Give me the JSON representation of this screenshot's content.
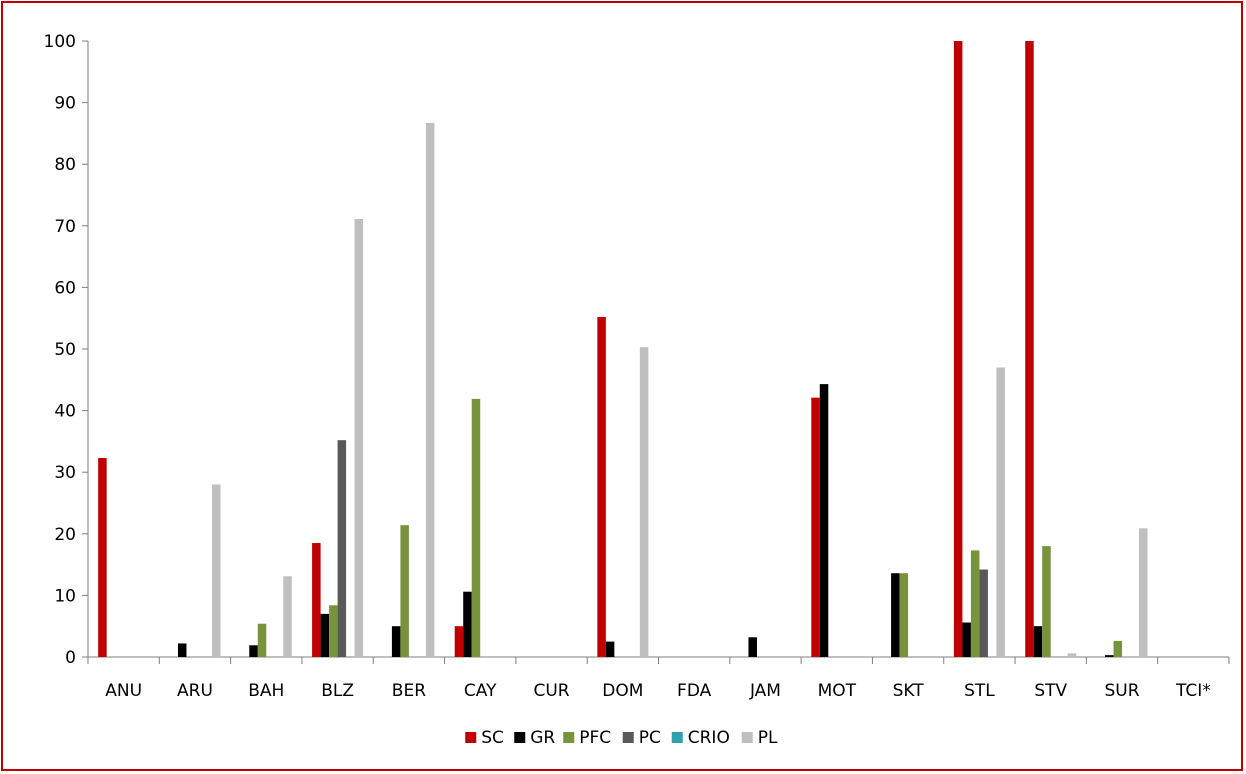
{
  "chart_data": {
    "type": "bar",
    "categories": [
      "ANU",
      "ARU",
      "BAH",
      "BLZ",
      "BER",
      "CAY",
      "CUR",
      "DOM",
      "FDA",
      "JAM",
      "MOT",
      "SKT",
      "STL",
      "STV",
      "SUR",
      "TCI*"
    ],
    "ylim": [
      0,
      100
    ],
    "yticks": [
      0,
      10,
      20,
      30,
      40,
      50,
      60,
      70,
      80,
      90,
      100
    ],
    "grid": false,
    "legend_position": "bottom",
    "series": [
      {
        "name": "SC",
        "color": "#c00000",
        "values": [
          32.3,
          0,
          0,
          18.5,
          0,
          5,
          0,
          55.2,
          0,
          0,
          42.1,
          0,
          100,
          100,
          0,
          0
        ]
      },
      {
        "name": "GR",
        "color": "#000000",
        "values": [
          0,
          2.2,
          1.9,
          7,
          5,
          10.6,
          0,
          2.5,
          0,
          3.2,
          44.3,
          13.6,
          5.6,
          5,
          0.3,
          0
        ]
      },
      {
        "name": "PFC",
        "color": "#77933c",
        "values": [
          0,
          0,
          5.4,
          8.4,
          21.4,
          41.9,
          0,
          0,
          0,
          0,
          0,
          13.6,
          17.3,
          18,
          2.6,
          0
        ]
      },
      {
        "name": "PC",
        "color": "#595959",
        "values": [
          0,
          0,
          0,
          35.2,
          0,
          0,
          0,
          0,
          0,
          0,
          0,
          0,
          14.2,
          0,
          0,
          0
        ]
      },
      {
        "name": "CRIO",
        "color": "#31a0b0",
        "values": [
          0,
          0,
          0,
          0,
          0,
          0,
          0,
          0,
          0,
          0,
          0,
          0,
          0,
          0,
          0,
          0
        ]
      },
      {
        "name": "PL",
        "color": "#bfbfbf",
        "values": [
          0,
          28,
          13.1,
          71.1,
          86.7,
          0,
          0,
          50.3,
          0,
          0,
          0,
          0,
          47,
          0.6,
          20.9,
          0
        ]
      }
    ]
  }
}
